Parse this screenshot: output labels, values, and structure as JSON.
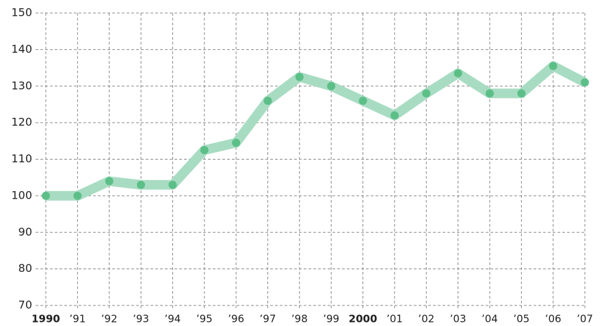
{
  "chart_data": {
    "type": "line",
    "categories": [
      "1990",
      "’91",
      "’92",
      "’93",
      "’94",
      "’95",
      "’96",
      "’97",
      "’98",
      "’99",
      "2000",
      "’01",
      "’02",
      "’03",
      "’04",
      "’05",
      "’06",
      "’07"
    ],
    "bold_category_indices": [
      0,
      10
    ],
    "values": [
      100,
      100,
      104,
      103,
      103,
      112.5,
      114.5,
      126,
      132.5,
      130,
      126,
      122,
      128,
      133.5,
      128,
      128,
      135.5,
      131
    ],
    "color": "#a8dcc2",
    "marker_color": "#5dbf88",
    "ylim": [
      70,
      150
    ],
    "yticks": [
      70,
      80,
      90,
      100,
      110,
      120,
      130,
      140,
      150
    ],
    "grid": true
  }
}
